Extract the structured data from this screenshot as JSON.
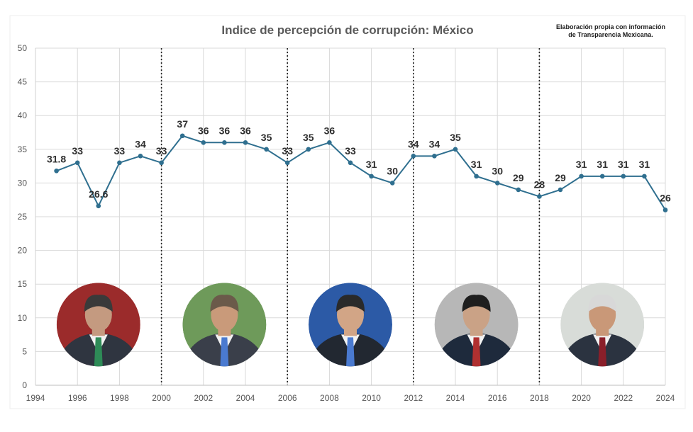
{
  "chart_data": {
    "type": "line",
    "title": "Indice de percepción de corrupción: México",
    "source_note": [
      "Elaboración propia con información",
      "de Transparencia Mexicana."
    ],
    "xlabel": "",
    "ylabel": "",
    "xlim": [
      1994,
      2024
    ],
    "ylim": [
      0,
      50
    ],
    "x_ticks": [
      "1994",
      "1996",
      "1998",
      "2000",
      "2002",
      "2004",
      "2006",
      "2008",
      "2010",
      "2012",
      "2014",
      "2016",
      "2018",
      "2020",
      "2022",
      "2024"
    ],
    "y_ticks": [
      "0",
      "5",
      "10",
      "15",
      "20",
      "25",
      "30",
      "35",
      "40",
      "45",
      "50"
    ],
    "grid": true,
    "series": [
      {
        "x": [
          1995,
          1996,
          1997,
          1998,
          1999,
          2000,
          2001,
          2002,
          2003,
          2004,
          2005,
          2006,
          2007,
          2008,
          2009,
          2010,
          2011,
          2012,
          2013,
          2014,
          2015,
          2016,
          2017,
          2018,
          2019,
          2020,
          2021,
          2022,
          2023,
          2024
        ],
        "values": [
          31.8,
          33,
          26.6,
          33,
          34,
          33,
          37,
          36,
          36,
          36,
          35,
          33,
          35,
          36,
          33,
          31,
          30,
          34,
          34,
          35,
          31,
          30,
          29,
          28,
          29,
          31,
          31,
          31,
          31,
          26
        ],
        "labels": [
          "31.8",
          "33",
          "26.6",
          "33",
          "34",
          "33",
          "37",
          "36",
          "36",
          "36",
          "35",
          "33",
          "35",
          "36",
          "33",
          "31",
          "30",
          "34",
          "34",
          "35",
          "31",
          "30",
          "29",
          "28",
          "29",
          "31",
          "31",
          "31",
          "31",
          "26"
        ]
      }
    ],
    "term_dividers": [
      2000,
      2006,
      2012,
      2018
    ],
    "portraits": [
      {
        "name": "president-portrait-1",
        "center_year": 1997,
        "center_value": 9,
        "bg": "#9b2b2b",
        "suit": "#2f3540",
        "skin": "#c49a80",
        "hair": "#3a3a3a",
        "accent": "#2e8b57"
      },
      {
        "name": "president-portrait-2",
        "center_year": 2003,
        "center_value": 9,
        "bg": "#6e9a5a",
        "suit": "#3a3f4a",
        "skin": "#c99a7a",
        "hair": "#6b5a4a",
        "accent": "#4a7ad0"
      },
      {
        "name": "president-portrait-3",
        "center_year": 2009,
        "center_value": 9,
        "bg": "#2c5aa6",
        "suit": "#222831",
        "skin": "#d2a586",
        "hair": "#2a2a2a",
        "accent": "#4a7ad0"
      },
      {
        "name": "president-portrait-4",
        "center_year": 2015,
        "center_value": 9,
        "bg": "#b7b7b7",
        "suit": "#1e2a3c",
        "skin": "#caa286",
        "hair": "#1e1e1e",
        "accent": "#b03030"
      },
      {
        "name": "president-portrait-5",
        "center_year": 2021,
        "center_value": 9,
        "bg": "#d8dcd8",
        "suit": "#2b3340",
        "skin": "#c99878",
        "hair": "#d8d8d8",
        "accent": "#8a1f2a"
      }
    ],
    "colors": {
      "line": "#2f6f8f",
      "point": "#2f6f8f",
      "grid": "#d9d9d9",
      "divider": "#222222",
      "frame": "#eeeeee"
    }
  }
}
